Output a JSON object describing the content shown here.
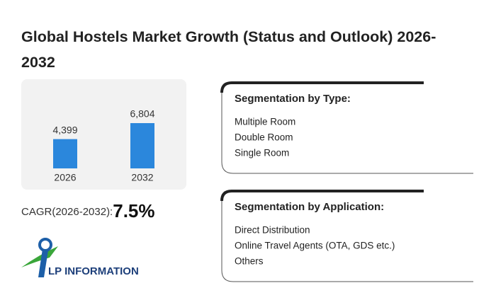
{
  "header": {
    "title": "Global Hostels Market Growth (Status and Outlook) 2026-2032"
  },
  "chart_data": {
    "type": "bar",
    "categories": [
      "2026",
      "2032"
    ],
    "values": [
      4399,
      6804
    ],
    "value_labels": [
      "4,399",
      "6,804"
    ],
    "color": "#2b87dc"
  },
  "cagr": {
    "label": "CAGR(2026-2032):",
    "value": "7.5%"
  },
  "logo": {
    "text": "LP INFORMATION"
  },
  "segments": [
    {
      "title": "Segmentation by Type:",
      "items": [
        "Multiple Room",
        "Double Room",
        "Single Room"
      ]
    },
    {
      "title": "Segmentation by Application:",
      "items": [
        "Direct Distribution",
        "Online Travel Agents (OTA, GDS etc.)",
        "Others"
      ]
    }
  ]
}
